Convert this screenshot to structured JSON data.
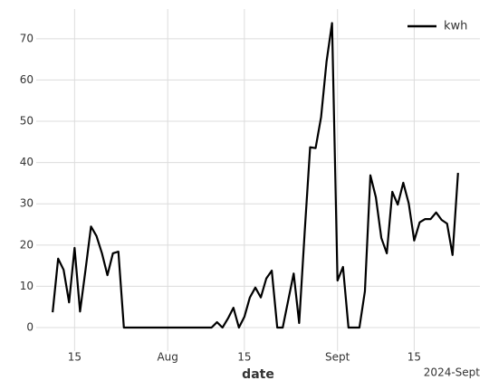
{
  "chart_data": {
    "type": "line",
    "xlabel": "date",
    "x_offset_label": "2024-Sept",
    "x": [
      "2024-07-11",
      "2024-07-12",
      "2024-07-13",
      "2024-07-14",
      "2024-07-15",
      "2024-07-16",
      "2024-07-17",
      "2024-07-18",
      "2024-07-19",
      "2024-07-20",
      "2024-07-21",
      "2024-07-22",
      "2024-07-23",
      "2024-07-24",
      "2024-07-25",
      "2024-07-26",
      "2024-07-27",
      "2024-07-28",
      "2024-07-29",
      "2024-07-30",
      "2024-07-31",
      "2024-08-01",
      "2024-08-02",
      "2024-08-03",
      "2024-08-04",
      "2024-08-05",
      "2024-08-06",
      "2024-08-07",
      "2024-08-08",
      "2024-08-09",
      "2024-08-10",
      "2024-08-11",
      "2024-08-12",
      "2024-08-13",
      "2024-08-14",
      "2024-08-15",
      "2024-08-16",
      "2024-08-17",
      "2024-08-18",
      "2024-08-19",
      "2024-08-20",
      "2024-08-21",
      "2024-08-22",
      "2024-08-23",
      "2024-08-24",
      "2024-08-25",
      "2024-08-26",
      "2024-08-27",
      "2024-08-28",
      "2024-08-29",
      "2024-08-30",
      "2024-08-31",
      "2024-09-01",
      "2024-09-02",
      "2024-09-03",
      "2024-09-04",
      "2024-09-05",
      "2024-09-06",
      "2024-09-07",
      "2024-09-08",
      "2024-09-09",
      "2024-09-10",
      "2024-09-11",
      "2024-09-12",
      "2024-09-13",
      "2024-09-14",
      "2024-09-15",
      "2024-09-16",
      "2024-09-17",
      "2024-09-18",
      "2024-09-19",
      "2024-09-20",
      "2024-09-21",
      "2024-09-22",
      "2024-09-23"
    ],
    "series": [
      {
        "name": "kwh",
        "color": "#000000",
        "values": [
          3.7,
          16.7,
          14,
          6.1,
          19.3,
          3.9,
          14,
          24.5,
          22.2,
          18,
          12.7,
          18,
          18.4,
          0,
          0,
          0,
          0,
          0,
          0,
          0,
          0,
          0,
          0,
          0,
          0,
          0,
          0,
          0,
          0,
          0,
          1.3,
          0,
          2.2,
          4.8,
          0,
          2.6,
          7.3,
          9.7,
          7.3,
          11.9,
          13.8,
          0,
          0,
          6.6,
          13.1,
          1.1,
          23,
          43.7,
          43.5,
          51,
          64.5,
          73.8,
          11.4,
          14.7,
          0,
          0,
          0,
          8.8,
          36.9,
          31.6,
          21.7,
          18,
          32.9,
          29.8,
          35.1,
          30.1,
          21.1,
          25.5,
          26.3,
          26.3,
          27.9,
          26.1,
          25.2,
          17.6,
          37.5
        ]
      }
    ],
    "xlim": [
      "2024-07-08",
      "2024-09-27"
    ],
    "xticks": [
      {
        "value": "2024-07-15",
        "label": "15"
      },
      {
        "value": "2024-08-01",
        "label": "Aug"
      },
      {
        "value": "2024-08-15",
        "label": "15"
      },
      {
        "value": "2024-09-01",
        "label": "Sept"
      },
      {
        "value": "2024-09-15",
        "label": "15"
      }
    ],
    "ylim": [
      -5.7,
      77.2
    ],
    "yticks": [
      0,
      10,
      20,
      30,
      40,
      50,
      60,
      70
    ],
    "grid": true,
    "legend": "upper right"
  }
}
